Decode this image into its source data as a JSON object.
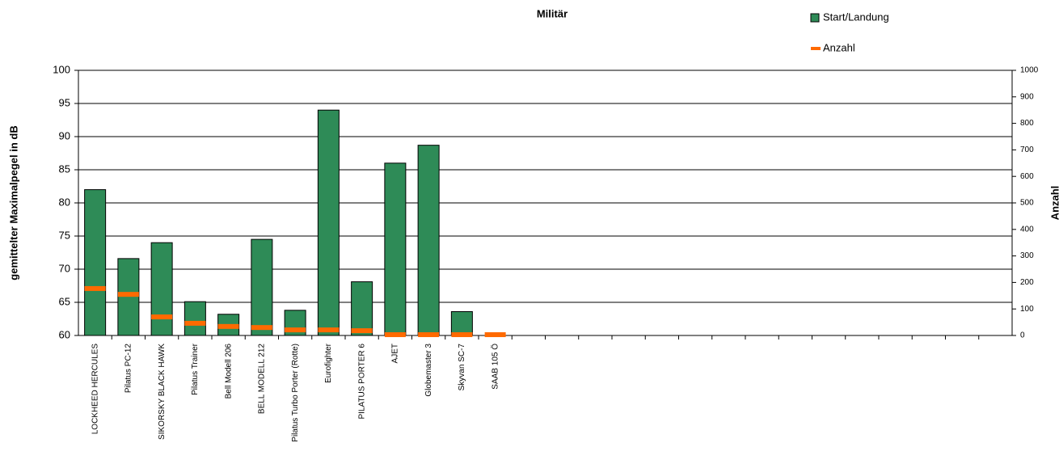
{
  "chart_data": {
    "type": "bar",
    "title": "Militär",
    "y_label": "gemittelter  Maximalpegel  in dB",
    "y2_label": "Anzahl",
    "categories": [
      "LOCKHEED HERCULES",
      "Pilatus PC-12",
      "SIKORSKY BLACK HAWK",
      "Pilatus Trainer",
      "Bell Modell 206",
      "BELL MODELL 212",
      "Pilatus Turbo Porter (Rotte)",
      "Eurofighter",
      "PILATUS PORTER 6",
      "AJET",
      "Globemaster 3",
      "Skyvan SC-7",
      "SAAB 105 Ö",
      null,
      null,
      null,
      null,
      null,
      null,
      null,
      null,
      null,
      null,
      null,
      null,
      null,
      null,
      null
    ],
    "series": [
      {
        "name": "Start/Landung",
        "color": "#2e8b57",
        "values": [
          82,
          71.6,
          74,
          65.1,
          63.2,
          74.5,
          63.8,
          94,
          68.1,
          86,
          88.7,
          63.6,
          null,
          null,
          null,
          null,
          null,
          null,
          null,
          null,
          null,
          null,
          null,
          null,
          null,
          null,
          null,
          null
        ]
      },
      {
        "name": "Anzahl",
        "color": "#ff6a00",
        "axis": "y2",
        "values": [
          177,
          155,
          70,
          46,
          34,
          30,
          21,
          21,
          18,
          3,
          3,
          3,
          3,
          null,
          null,
          null,
          null,
          null,
          null,
          null,
          null,
          null,
          null,
          null,
          null,
          null,
          null,
          null
        ]
      }
    ],
    "ylim": [
      60,
      100
    ],
    "yticks": [
      60,
      65,
      70,
      75,
      80,
      85,
      90,
      95,
      100
    ],
    "y2lim": [
      0,
      1000
    ],
    "y2ticks": [
      0,
      100,
      200,
      300,
      400,
      500,
      600,
      700,
      800,
      900,
      1000
    ],
    "grid": true,
    "legend": "top-right"
  }
}
